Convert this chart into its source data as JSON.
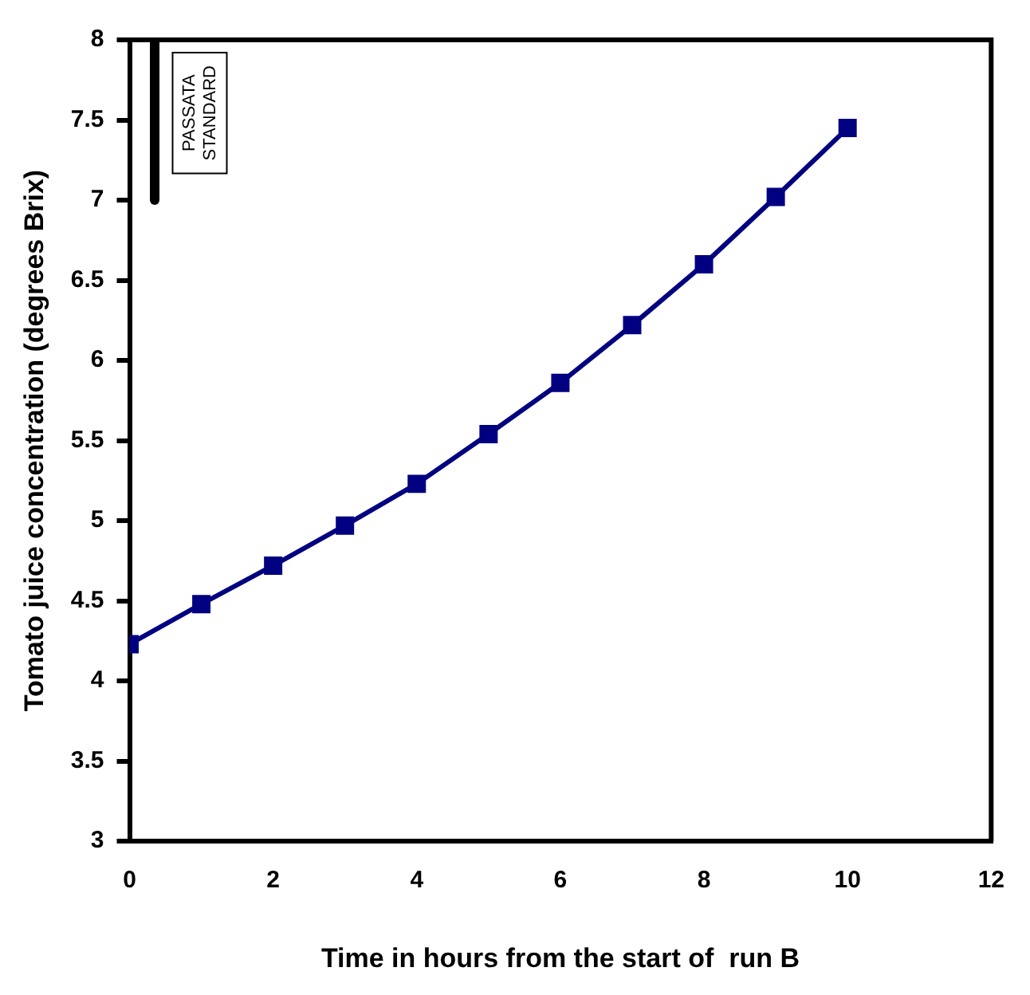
{
  "chart_data": {
    "type": "line",
    "xlabel": "Time in hours from the start of  run B",
    "ylabel": "Tomato juice concentration (degrees Brix)",
    "x": [
      0,
      1,
      2,
      3,
      4,
      5,
      6,
      7,
      8,
      9,
      10
    ],
    "series": [
      {
        "color": "#000080",
        "values": [
          4.23,
          4.48,
          4.72,
          4.97,
          5.23,
          5.54,
          5.86,
          6.22,
          6.6,
          7.02,
          7.45
        ]
      },
      {
        "type": "line",
        "color": "#000000",
        "marker": "none",
        "x": [
          0.35,
          0.35
        ],
        "values": [
          7,
          8
        ]
      }
    ],
    "xlim": [
      0,
      12
    ],
    "xticks": [
      0,
      2,
      4,
      6,
      8,
      10,
      12
    ],
    "ylim": [
      3,
      8
    ],
    "yticks": [
      3,
      3.5,
      4,
      4.5,
      5,
      5.5,
      6,
      6.5,
      7,
      7.5,
      8
    ],
    "annotations": [
      "PASSATA STANDARD"
    ],
    "marker": "square",
    "line_style": "solid",
    "grid": false,
    "legend": false
  }
}
